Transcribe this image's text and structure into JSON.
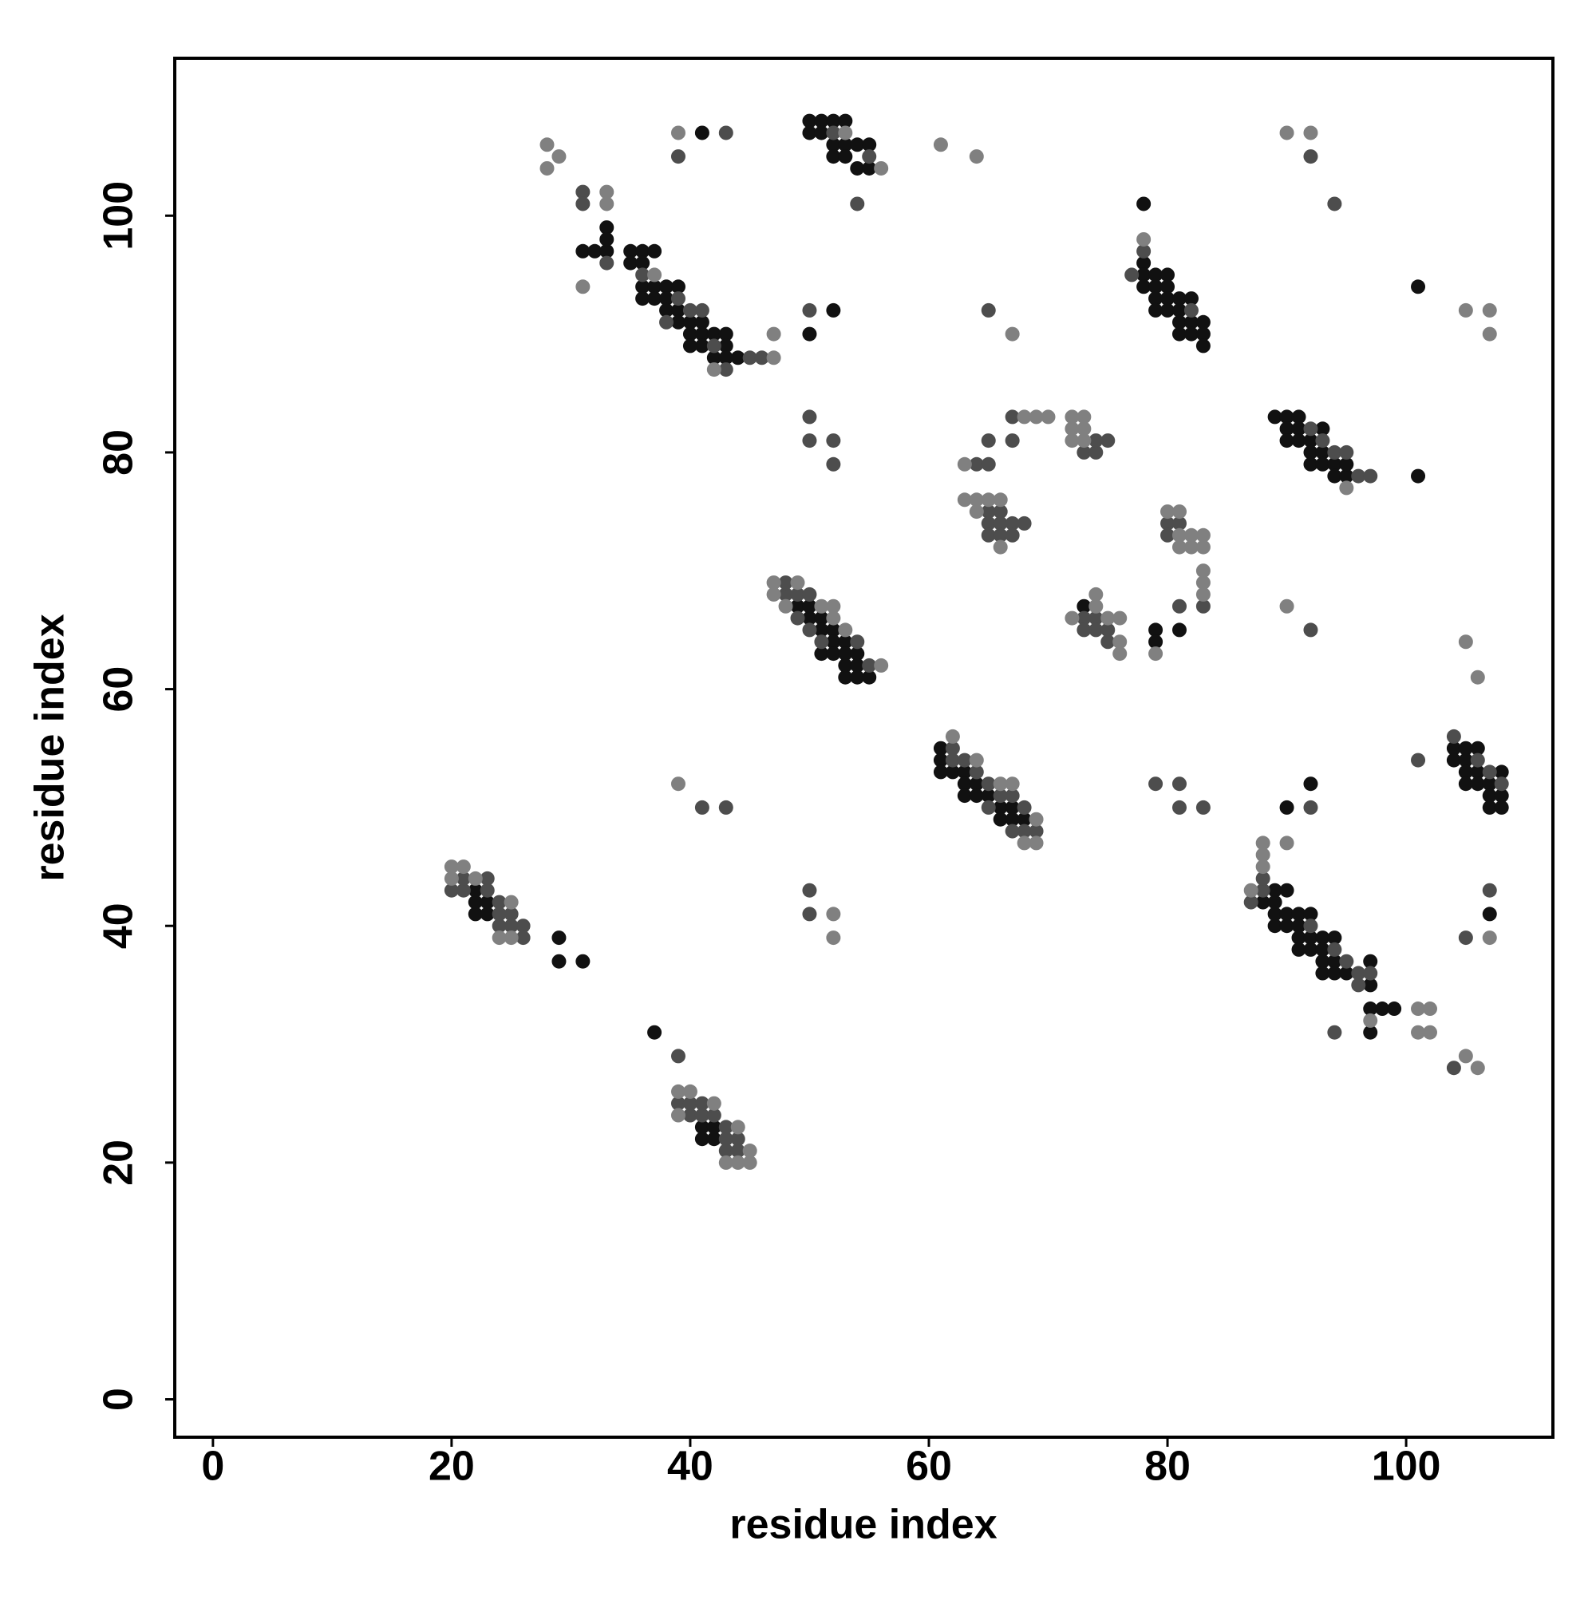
{
  "chart_data": {
    "type": "scatter",
    "xlabel": "residue index",
    "ylabel": "residue index",
    "xlim": [
      -3.2,
      112.3
    ],
    "ylim": [
      -3.2,
      113.3
    ],
    "xticks": [
      0,
      20,
      40,
      60,
      80,
      100
    ],
    "yticks": [
      0,
      20,
      40,
      60,
      80,
      100
    ],
    "grid": false,
    "series": [
      {
        "color": "#111111",
        "x": [
          22,
          22,
          23,
          22,
          23,
          29,
          29,
          31,
          41,
          42,
          41,
          42,
          37,
          50,
          51,
          51,
          52,
          52,
          53,
          51,
          52,
          53,
          54,
          53,
          54,
          53,
          54,
          55,
          49,
          50,
          61,
          61,
          61,
          62,
          63,
          63,
          64,
          63,
          64,
          65,
          66,
          67,
          66,
          67,
          68,
          31,
          32,
          33,
          33,
          33,
          35,
          36,
          37,
          35,
          36,
          36,
          37,
          38,
          39,
          36,
          37,
          38,
          38,
          39,
          39,
          40,
          41,
          40,
          41,
          42,
          43,
          40,
          41,
          43,
          42,
          43,
          44,
          50,
          52,
          41,
          50,
          51,
          52,
          53,
          50,
          51,
          52,
          53,
          54,
          55,
          52,
          53,
          54,
          55,
          78,
          78,
          78,
          79,
          80,
          79,
          80,
          79,
          80,
          81,
          82,
          79,
          80,
          81,
          81,
          82,
          81,
          82,
          83,
          83,
          83,
          78,
          89,
          90,
          91,
          90,
          91,
          90,
          91,
          92,
          93,
          92,
          93,
          92,
          93,
          94,
          94,
          95,
          95,
          101,
          90,
          89,
          88,
          89,
          89,
          90,
          91,
          92,
          89,
          90,
          91,
          91,
          92,
          93,
          94,
          91,
          92,
          93,
          93,
          94,
          97,
          93,
          94,
          95,
          97,
          97,
          98,
          99,
          97,
          90,
          92,
          104,
          105,
          106,
          104,
          105,
          105,
          106,
          105,
          106,
          107,
          108,
          107,
          108,
          107,
          108,
          107,
          101,
          79,
          79,
          73,
          81
        ],
        "values": [
          43,
          42,
          42,
          41,
          41,
          39,
          37,
          37,
          23,
          23,
          22,
          22,
          31,
          66,
          66,
          65,
          65,
          64,
          64,
          63,
          63,
          63,
          63,
          62,
          62,
          61,
          61,
          61,
          67,
          67,
          55,
          54,
          53,
          53,
          53,
          52,
          52,
          51,
          51,
          51,
          50,
          50,
          49,
          49,
          49,
          97,
          97,
          97,
          99,
          98,
          97,
          97,
          97,
          96,
          96,
          94,
          94,
          94,
          94,
          93,
          93,
          93,
          92,
          92,
          91,
          91,
          91,
          90,
          90,
          90,
          90,
          89,
          89,
          89,
          88,
          88,
          88,
          90,
          92,
          107,
          108,
          108,
          108,
          108,
          107,
          107,
          106,
          106,
          106,
          106,
          105,
          105,
          104,
          104,
          96,
          95,
          94,
          94,
          94,
          95,
          95,
          93,
          93,
          93,
          93,
          92,
          92,
          92,
          91,
          91,
          90,
          90,
          91,
          90,
          89,
          101,
          83,
          83,
          83,
          82,
          82,
          81,
          81,
          81,
          82,
          80,
          80,
          79,
          79,
          79,
          78,
          78,
          79,
          78,
          43,
          43,
          42,
          42,
          41,
          41,
          41,
          41,
          40,
          40,
          40,
          39,
          39,
          39,
          39,
          38,
          38,
          38,
          37,
          37,
          37,
          36,
          36,
          36,
          35,
          33,
          33,
          33,
          31,
          50,
          52,
          55,
          55,
          55,
          54,
          54,
          53,
          53,
          52,
          52,
          52,
          53,
          51,
          51,
          50,
          50,
          41,
          94,
          65,
          64,
          67,
          65
        ]
      },
      {
        "color": "#4d4d4d",
        "x": [
          20,
          21,
          21,
          23,
          23,
          24,
          24,
          25,
          25,
          24,
          26,
          26,
          39,
          40,
          40,
          41,
          41,
          42,
          43,
          43,
          44,
          43,
          44,
          39,
          48,
          49,
          50,
          49,
          50,
          51,
          54,
          55,
          48,
          62,
          62,
          63,
          64,
          65,
          66,
          67,
          65,
          68,
          68,
          67,
          69,
          36,
          39,
          40,
          41,
          38,
          42,
          45,
          46,
          43,
          33,
          39,
          43,
          31,
          31,
          52,
          55,
          54,
          50,
          77,
          78,
          82,
          92,
          93,
          94,
          95,
          96,
          97,
          88,
          87,
          88,
          92,
          94,
          95,
          96,
          97,
          96,
          94,
          92,
          104,
          106,
          107,
          108,
          101,
          107,
          105,
          94,
          92,
          92,
          104,
          64,
          65,
          65,
          67,
          67,
          73,
          74,
          75,
          74,
          65,
          66,
          65,
          66,
          67,
          68,
          65,
          66,
          67,
          80,
          80,
          81,
          81,
          83,
          74,
          74,
          75,
          75,
          73,
          73,
          50,
          50,
          52,
          52,
          41,
          43,
          50,
          50,
          79,
          81,
          81,
          83,
          65
        ],
        "values": [
          43,
          43,
          44,
          44,
          43,
          42,
          41,
          41,
          40,
          40,
          40,
          39,
          25,
          25,
          24,
          24,
          25,
          24,
          23,
          22,
          22,
          21,
          21,
          29,
          68,
          68,
          68,
          66,
          65,
          64,
          64,
          62,
          69,
          55,
          54,
          54,
          53,
          52,
          51,
          51,
          50,
          50,
          48,
          48,
          48,
          95,
          93,
          92,
          92,
          91,
          89,
          88,
          88,
          87,
          96,
          105,
          107,
          102,
          101,
          107,
          105,
          101,
          92,
          95,
          97,
          92,
          82,
          81,
          80,
          80,
          78,
          78,
          43,
          42,
          44,
          40,
          38,
          37,
          36,
          36,
          35,
          31,
          50,
          56,
          54,
          53,
          52,
          54,
          43,
          39,
          101,
          105,
          65,
          28,
          79,
          79,
          81,
          81,
          83,
          80,
          80,
          81,
          81,
          75,
          75,
          74,
          74,
          74,
          74,
          73,
          73,
          73,
          74,
          73,
          74,
          67,
          67,
          66,
          65,
          65,
          64,
          66,
          65,
          83,
          81,
          81,
          79,
          50,
          50,
          43,
          41,
          52,
          52,
          50,
          50,
          92
        ]
      },
      {
        "color": "#808080",
        "x": [
          20,
          21,
          20,
          22,
          25,
          24,
          25,
          39,
          40,
          39,
          42,
          44,
          45,
          43,
          44,
          45,
          47,
          49,
          47,
          48,
          51,
          52,
          52,
          53,
          56,
          62,
          64,
          66,
          67,
          69,
          68,
          69,
          37,
          47,
          47,
          42,
          31,
          33,
          33,
          28,
          29,
          28,
          39,
          61,
          64,
          53,
          56,
          78,
          95,
          88,
          88,
          88,
          87,
          97,
          101,
          102,
          101,
          102,
          90,
          107,
          105,
          106,
          105,
          106,
          105,
          107,
          107,
          90,
          92,
          90,
          63,
          68,
          69,
          70,
          72,
          73,
          72,
          73,
          72,
          73,
          63,
          64,
          65,
          66,
          64,
          66,
          80,
          81,
          81,
          82,
          83,
          81,
          82,
          83,
          83,
          83,
          83,
          72,
          75,
          76,
          74,
          74,
          76,
          76,
          79,
          39,
          52,
          52,
          67
        ],
        "values": [
          45,
          45,
          44,
          44,
          42,
          39,
          39,
          26,
          26,
          24,
          25,
          23,
          21,
          20,
          20,
          20,
          69,
          69,
          68,
          67,
          67,
          67,
          66,
          65,
          62,
          56,
          54,
          52,
          52,
          49,
          47,
          47,
          95,
          88,
          90,
          87,
          94,
          102,
          101,
          106,
          105,
          104,
          107,
          106,
          105,
          107,
          104,
          98,
          77,
          47,
          46,
          45,
          43,
          32,
          33,
          33,
          31,
          31,
          47,
          39,
          29,
          28,
          64,
          61,
          92,
          92,
          90,
          107,
          107,
          67,
          79,
          83,
          83,
          83,
          83,
          83,
          82,
          82,
          81,
          81,
          76,
          76,
          76,
          76,
          75,
          72,
          75,
          75,
          73,
          73,
          73,
          72,
          72,
          72,
          70,
          69,
          68,
          66,
          66,
          66,
          67,
          68,
          64,
          63,
          63,
          52,
          41,
          39,
          90
        ]
      }
    ]
  }
}
